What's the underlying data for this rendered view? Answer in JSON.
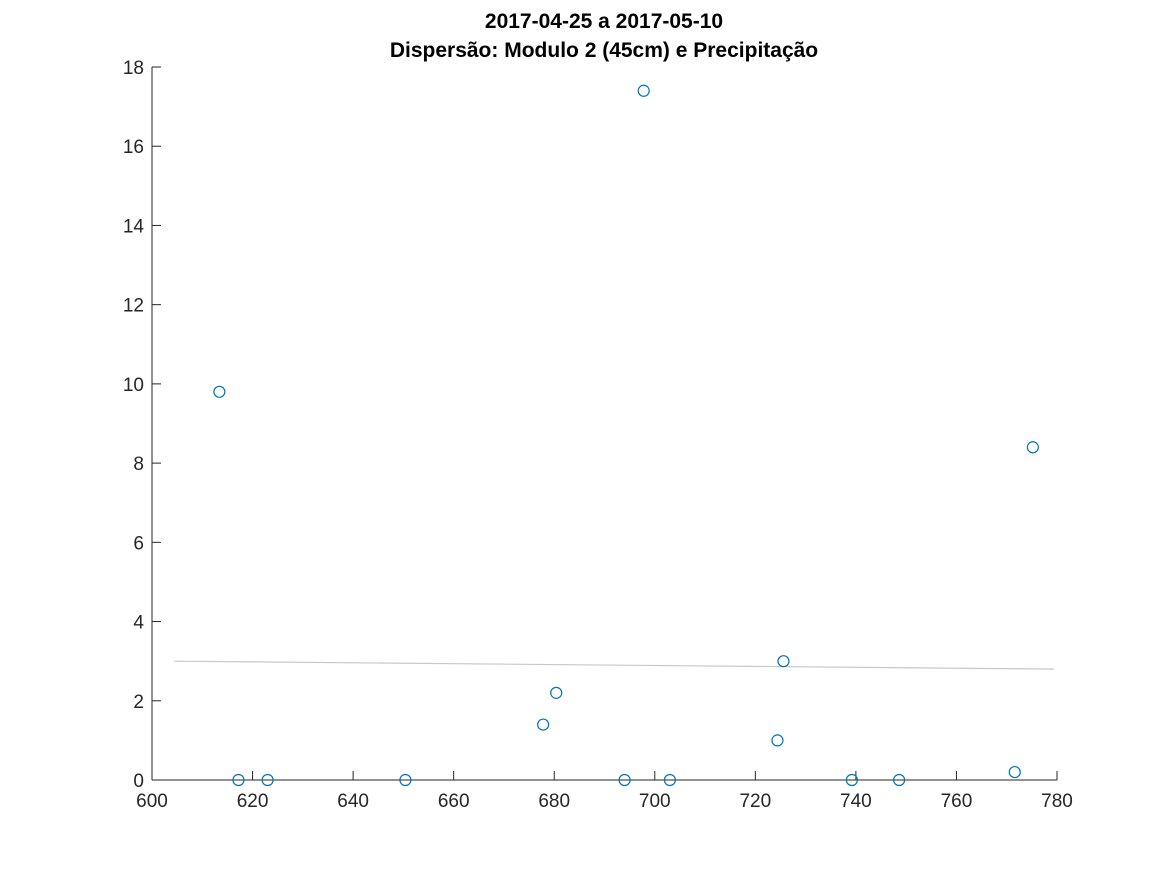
{
  "chart_data": {
    "type": "scatter",
    "title_line1": "2017-04-25 a 2017-05-10",
    "title_line2": "Dispersão: Modulo 2 (45cm) e Precipitação",
    "xlabel": "",
    "ylabel": "",
    "xlim": [
      600,
      780
    ],
    "ylim": [
      0,
      18
    ],
    "xticks": [
      600,
      620,
      640,
      660,
      680,
      700,
      720,
      740,
      760,
      780
    ],
    "yticks": [
      0,
      2,
      4,
      6,
      8,
      10,
      12,
      14,
      16,
      18
    ],
    "grid": false,
    "marker_color": "#0072bd",
    "trend_color": "#c8c8c8",
    "points": [
      {
        "x": 613.4,
        "y": 9.8
      },
      {
        "x": 617.2,
        "y": 0.0
      },
      {
        "x": 623.0,
        "y": 0.0
      },
      {
        "x": 650.4,
        "y": 0.0
      },
      {
        "x": 677.8,
        "y": 1.4
      },
      {
        "x": 680.4,
        "y": 2.2
      },
      {
        "x": 694.0,
        "y": 0.0
      },
      {
        "x": 697.8,
        "y": 17.4
      },
      {
        "x": 703.0,
        "y": 0.0
      },
      {
        "x": 724.4,
        "y": 1.0
      },
      {
        "x": 725.6,
        "y": 3.0
      },
      {
        "x": 739.2,
        "y": 0.0
      },
      {
        "x": 748.6,
        "y": 0.0
      },
      {
        "x": 771.6,
        "y": 0.2
      },
      {
        "x": 775.2,
        "y": 8.4
      }
    ],
    "trendline": {
      "x": [
        604.4,
        779.4
      ],
      "y": [
        3.0,
        2.8
      ]
    }
  }
}
